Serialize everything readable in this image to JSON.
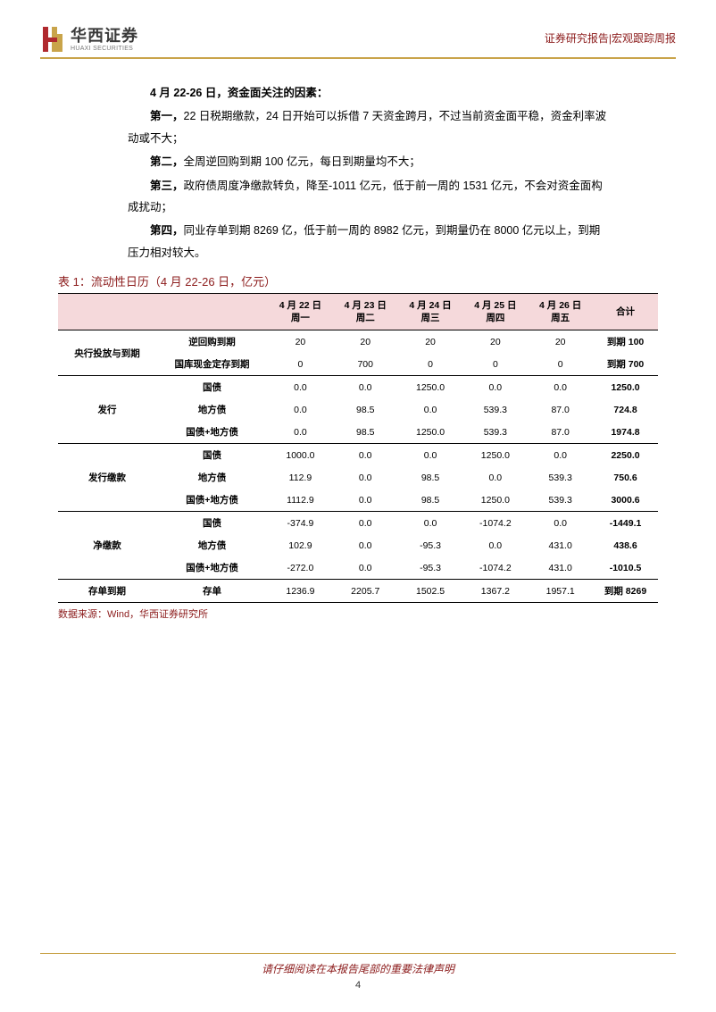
{
  "header": {
    "logo_cn": "华西证券",
    "logo_en": "HUAXI SECURITIES",
    "right": "证券研究报告|宏观跟踪周报",
    "logo_colors": {
      "red": "#b0292e",
      "gold": "#c9a44a"
    }
  },
  "content": {
    "intro": "4 月 22-26 日，资金面关注的因素：",
    "p1_bold": "第一，",
    "p1": "22 日税期缴款，24 日开始可以拆借 7 天资金跨月，不过当前资金面平稳，资金利率波动或不大；",
    "p2_bold": "第二，",
    "p2": "全周逆回购到期 100 亿元，每日到期量均不大；",
    "p3_bold": "第三，",
    "p3": "政府债周度净缴款转负，降至-1011 亿元，低于前一周的 1531 亿元，不会对资金面构成扰动；",
    "p4_bold": "第四，",
    "p4": "同业存单到期 8269 亿，低于前一周的 8982 亿元，到期量仍在 8000 亿元以上，到期压力相对较大。"
  },
  "table": {
    "title": "表 1：流动性日历（4 月 22-26 日，亿元）",
    "columns": [
      {
        "date": "4 月 22 日",
        "dow": "周一"
      },
      {
        "date": "4 月 23 日",
        "dow": "周二"
      },
      {
        "date": "4 月 24 日",
        "dow": "周三"
      },
      {
        "date": "4 月 25 日",
        "dow": "周四"
      },
      {
        "date": "4 月 26 日",
        "dow": "周五"
      }
    ],
    "total_header": "合计",
    "groups": [
      {
        "label": "央行投放与到期",
        "rows": [
          {
            "sub": "逆回购到期",
            "vals": [
              "20",
              "20",
              "20",
              "20",
              "20"
            ],
            "total": "到期 100"
          },
          {
            "sub": "国库现金定存到期",
            "vals": [
              "0",
              "700",
              "0",
              "0",
              "0"
            ],
            "total": "到期 700"
          }
        ]
      },
      {
        "label": "发行",
        "rows": [
          {
            "sub": "国债",
            "vals": [
              "0.0",
              "0.0",
              "1250.0",
              "0.0",
              "0.0"
            ],
            "total": "1250.0"
          },
          {
            "sub": "地方债",
            "vals": [
              "0.0",
              "98.5",
              "0.0",
              "539.3",
              "87.0"
            ],
            "total": "724.8"
          },
          {
            "sub": "国债+地方债",
            "vals": [
              "0.0",
              "98.5",
              "1250.0",
              "539.3",
              "87.0"
            ],
            "total": "1974.8"
          }
        ]
      },
      {
        "label": "发行缴款",
        "rows": [
          {
            "sub": "国债",
            "vals": [
              "1000.0",
              "0.0",
              "0.0",
              "1250.0",
              "0.0"
            ],
            "total": "2250.0"
          },
          {
            "sub": "地方债",
            "vals": [
              "112.9",
              "0.0",
              "98.5",
              "0.0",
              "539.3"
            ],
            "total": "750.6"
          },
          {
            "sub": "国债+地方债",
            "vals": [
              "1112.9",
              "0.0",
              "98.5",
              "1250.0",
              "539.3"
            ],
            "total": "3000.6"
          }
        ]
      },
      {
        "label": "净缴款",
        "rows": [
          {
            "sub": "国债",
            "vals": [
              "-374.9",
              "0.0",
              "0.0",
              "-1074.2",
              "0.0"
            ],
            "total": "-1449.1"
          },
          {
            "sub": "地方债",
            "vals": [
              "102.9",
              "0.0",
              "-95.3",
              "0.0",
              "431.0"
            ],
            "total": "438.6"
          },
          {
            "sub": "国债+地方债",
            "vals": [
              "-272.0",
              "0.0",
              "-95.3",
              "-1074.2",
              "431.0"
            ],
            "total": "-1010.5"
          }
        ]
      },
      {
        "label": "存单到期",
        "rows": [
          {
            "sub": "存单",
            "vals": [
              "1236.9",
              "2205.7",
              "1502.5",
              "1367.2",
              "1957.1"
            ],
            "total": "到期 8269"
          }
        ]
      }
    ],
    "source": "数据来源：Wind，华西证券研究所",
    "colors": {
      "header_bg": "#f5d9db",
      "border": "#000000",
      "title_color": "#8b1a1a",
      "source_color": "#8b1a1a"
    }
  },
  "footer": {
    "text": "请仔细阅读在本报告尾部的重要法律声明",
    "page": "4",
    "line_color": "#c9a44a",
    "text_color": "#8b1a1a"
  }
}
